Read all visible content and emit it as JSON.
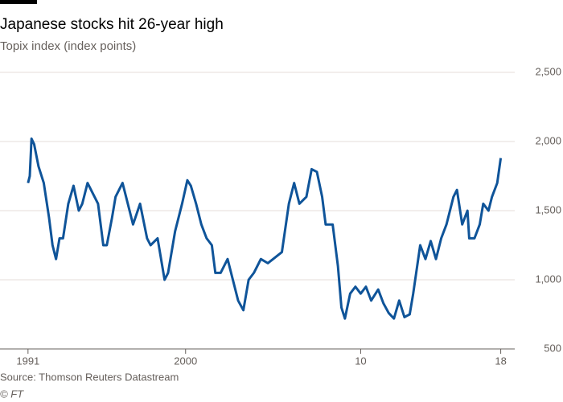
{
  "chart_data": {
    "type": "line",
    "title": "Japanese stocks hit 26-year high",
    "subtitle": "Topix index (index points)",
    "source": "Source: Thomson Reuters Datastream",
    "credit": "© FT",
    "x": [
      1991.0,
      1991.1,
      1991.2,
      1991.35,
      1991.6,
      1991.9,
      1992.2,
      1992.4,
      1992.6,
      1992.8,
      1993.0,
      1993.3,
      1993.6,
      1993.9,
      1994.1,
      1994.4,
      1994.8,
      1995.0,
      1995.3,
      1995.5,
      1995.8,
      1996.0,
      1996.4,
      1996.8,
      1997.0,
      1997.4,
      1997.8,
      1998.0,
      1998.4,
      1998.8,
      1999.0,
      1999.4,
      1999.8,
      2000.1,
      2000.3,
      2000.6,
      2000.9,
      2001.2,
      2001.5,
      2001.7,
      2002.0,
      2002.4,
      2002.7,
      2003.0,
      2003.3,
      2003.6,
      2003.9,
      2004.3,
      2004.7,
      2005.0,
      2005.5,
      2005.9,
      2006.2,
      2006.5,
      2006.9,
      2007.2,
      2007.5,
      2007.8,
      2008.0,
      2008.4,
      2008.7,
      2008.9,
      2009.1,
      2009.4,
      2009.7,
      2010.0,
      2010.3,
      2010.6,
      2011.0,
      2011.3,
      2011.6,
      2011.9,
      2012.2,
      2012.5,
      2012.8,
      2013.0,
      2013.4,
      2013.7,
      2014.0,
      2014.3,
      2014.6,
      2014.9,
      2015.3,
      2015.5,
      2015.8,
      2016.1,
      2016.2,
      2016.5,
      2016.8,
      2017.0,
      2017.3,
      2017.5,
      2017.8,
      2018.0
    ],
    "series": [
      {
        "name": "Topix",
        "color": "#0f5499",
        "values": [
          1700,
          1750,
          2020,
          1980,
          1820,
          1700,
          1450,
          1250,
          1150,
          1300,
          1300,
          1550,
          1680,
          1500,
          1550,
          1700,
          1600,
          1550,
          1250,
          1250,
          1450,
          1600,
          1700,
          1500,
          1400,
          1550,
          1300,
          1250,
          1300,
          1000,
          1050,
          1350,
          1550,
          1720,
          1680,
          1550,
          1400,
          1300,
          1250,
          1050,
          1050,
          1150,
          1000,
          850,
          780,
          1000,
          1050,
          1150,
          1120,
          1150,
          1200,
          1550,
          1700,
          1550,
          1600,
          1800,
          1780,
          1600,
          1400,
          1400,
          1100,
          800,
          720,
          900,
          950,
          900,
          950,
          850,
          930,
          830,
          760,
          720,
          850,
          730,
          750,
          900,
          1250,
          1150,
          1280,
          1150,
          1300,
          1400,
          1600,
          1650,
          1400,
          1500,
          1300,
          1300,
          1400,
          1550,
          1500,
          1600,
          1700,
          1880
        ]
      }
    ],
    "xlim": [
      1989.4,
      2018.8
    ],
    "xticks": [
      1991,
      2000,
      {
        "value": 2010,
        "label": "10"
      },
      {
        "value": 2018,
        "label": "18"
      }
    ],
    "ylim": [
      500,
      2500
    ],
    "yticks": [
      500,
      {
        "value": 1000,
        "label": "1,000"
      },
      {
        "value": 1500,
        "label": "1,500"
      },
      {
        "value": 2000,
        "label": "2,000"
      },
      {
        "value": 2500,
        "label": "2,500"
      }
    ],
    "grid": true
  }
}
